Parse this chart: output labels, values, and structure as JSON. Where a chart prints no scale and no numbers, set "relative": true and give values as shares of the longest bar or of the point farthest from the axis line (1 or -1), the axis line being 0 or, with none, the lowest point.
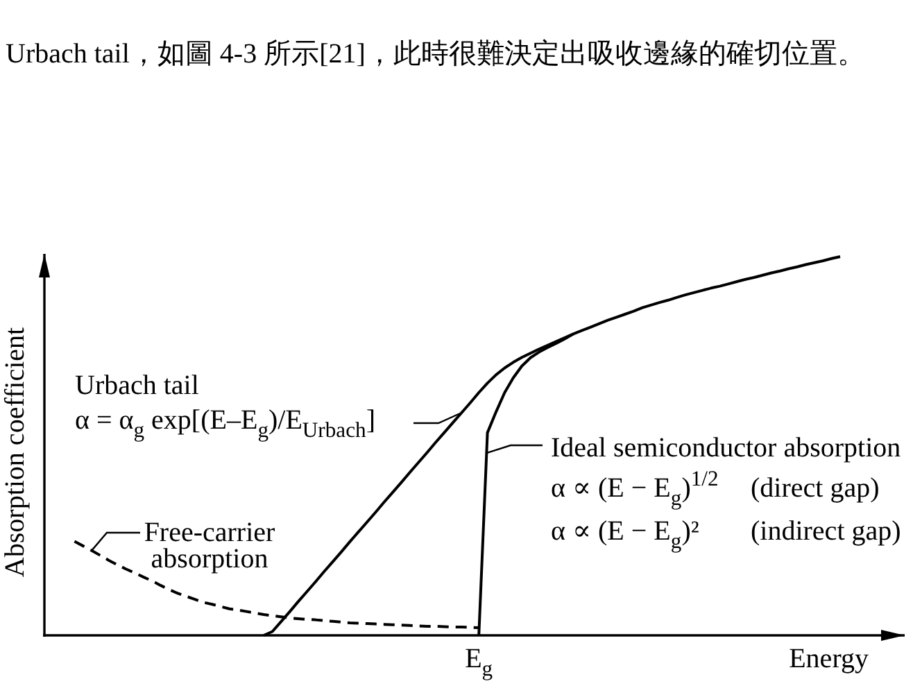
{
  "chart_data": {
    "type": "line",
    "relative": true,
    "line_style": "solid",
    "xlabel": "Energy",
    "ylabel": "Absorption coefficient",
    "categories": [
      null,
      null,
      null,
      null,
      null,
      null,
      null,
      null,
      null,
      null,
      null,
      null,
      null,
      null,
      null,
      null,
      null,
      null,
      null,
      null,
      null,
      null,
      null,
      null,
      null,
      null,
      null,
      null,
      null,
      null,
      null,
      null,
      null,
      null,
      null,
      null,
      null,
      null,
      null,
      null,
      null,
      null,
      null,
      null,
      null,
      null,
      null,
      null,
      null,
      null,
      null,
      null,
      null,
      null,
      null,
      null,
      null,
      null,
      null,
      null,
      null,
      null,
      null,
      null,
      null,
      null,
      null,
      null,
      null,
      null,
      null,
      null,
      null,
      null,
      null,
      null,
      null,
      null,
      null,
      null,
      null,
      null,
      null,
      null,
      null,
      null,
      null,
      null,
      null,
      null,
      null,
      null,
      null,
      null,
      null,
      null,
      null,
      null,
      null,
      null
    ],
    "series": [
      {
        "color": "#000000",
        "values": [
          null,
          null,
          null,
          null,
          null,
          null,
          null,
          null,
          null,
          null,
          null,
          null,
          null,
          null,
          null,
          null,
          null,
          null,
          null,
          null,
          null,
          null,
          null,
          null,
          null,
          0,
          0.01,
          0.036,
          0.062,
          0.089,
          0.115,
          0.141,
          0.168,
          0.194,
          0.22,
          0.247,
          0.273,
          0.299,
          0.325,
          0.352,
          0.378,
          0.404,
          0.431,
          0.457,
          0.483,
          0.51,
          0.536,
          0.562,
          0.588,
          0.614,
          0.641,
          0.666,
          0.688,
          0.706,
          0.721,
          0.734,
          0.745,
          0.756,
          0.766,
          0.776,
          0.786,
          0.796,
          0.805,
          0.814,
          0.823,
          0.832,
          0.84,
          0.848,
          0.856,
          0.865,
          0.872,
          0.879,
          0.885,
          0.892,
          0.899,
          0.905,
          0.911,
          0.917,
          0.922,
          0.928,
          0.934,
          0.94,
          0.945,
          0.951,
          0.957,
          0.962,
          0.968,
          0.973,
          0.979,
          0.984,
          0.989,
          0.995,
          1,
          null,
          null,
          null,
          null,
          null,
          null,
          null
        ]
      },
      {
        "color": "#000000",
        "values": [
          null,
          null,
          null,
          null,
          null,
          null,
          null,
          null,
          null,
          null,
          null,
          null,
          null,
          null,
          null,
          null,
          null,
          null,
          null,
          null,
          null,
          null,
          null,
          null,
          null,
          null,
          null,
          null,
          null,
          null,
          null,
          null,
          null,
          null,
          null,
          null,
          null,
          null,
          null,
          null,
          null,
          null,
          null,
          null,
          null,
          null,
          null,
          null,
          null,
          null,
          0,
          0.535,
          0.59,
          0.641,
          0.68,
          0.711,
          0.733,
          0.748,
          0.76,
          0.771,
          0.783,
          0.796,
          null,
          null,
          null,
          null,
          null,
          null,
          null,
          null,
          null,
          null,
          null,
          null,
          null,
          null,
          null,
          null,
          null,
          null,
          null,
          null,
          null,
          null,
          null,
          null,
          null,
          null,
          null,
          null,
          null,
          null,
          null,
          null,
          null,
          null,
          null,
          null,
          null,
          null
        ]
      },
      {
        "color": "#000000",
        "line_style": "dashed",
        "values": [
          null,
          null,
          null,
          0.248,
          0.236,
          0.224,
          0.211,
          0.198,
          0.186,
          0.175,
          0.165,
          0.154,
          0.144,
          0.132,
          0.121,
          0.111,
          0.103,
          0.095,
          0.087,
          0.082,
          0.076,
          0.07,
          0.067,
          0.063,
          0.059,
          0.055,
          0.052,
          0.049,
          0.046,
          0.044,
          0.042,
          0.041,
          0.039,
          0.037,
          0.035,
          0.033,
          0.032,
          0.031,
          0.03,
          0.029,
          0.028,
          0.027,
          0.026,
          0.025,
          0.024,
          0.024,
          0.023,
          0.022,
          0.022,
          0.021,
          0.02,
          null,
          null,
          null,
          null,
          null,
          null,
          null,
          null,
          null,
          null,
          null,
          null,
          null,
          null,
          null,
          null,
          null,
          null,
          null,
          null,
          null,
          null,
          null,
          null,
          null,
          null,
          null,
          null,
          null,
          null,
          null,
          null,
          null,
          null,
          null,
          null,
          null,
          null,
          null,
          null,
          null,
          null,
          null,
          null,
          null,
          null,
          null,
          null,
          null
        ]
      }
    ],
    "annotations": [
      "Urbach tail",
      "α = α$_{g}$ exp[(E–E$_{g}$)/E$_{Urbach}$]",
      "Ideal semiconductor absorption",
      "α ∝ (E − E$_{g}$)$^{1/2}$   (direct gap)",
      "α ∝ (E − E$_{g}$)²     (indirect gap)",
      "Free-carrier\nabsorption",
      "Urbach tail，如圖 4-3 所示[21]，此時很難決定出吸收邊緣的確切位置。",
      "E$_{g}$"
    ]
  }
}
